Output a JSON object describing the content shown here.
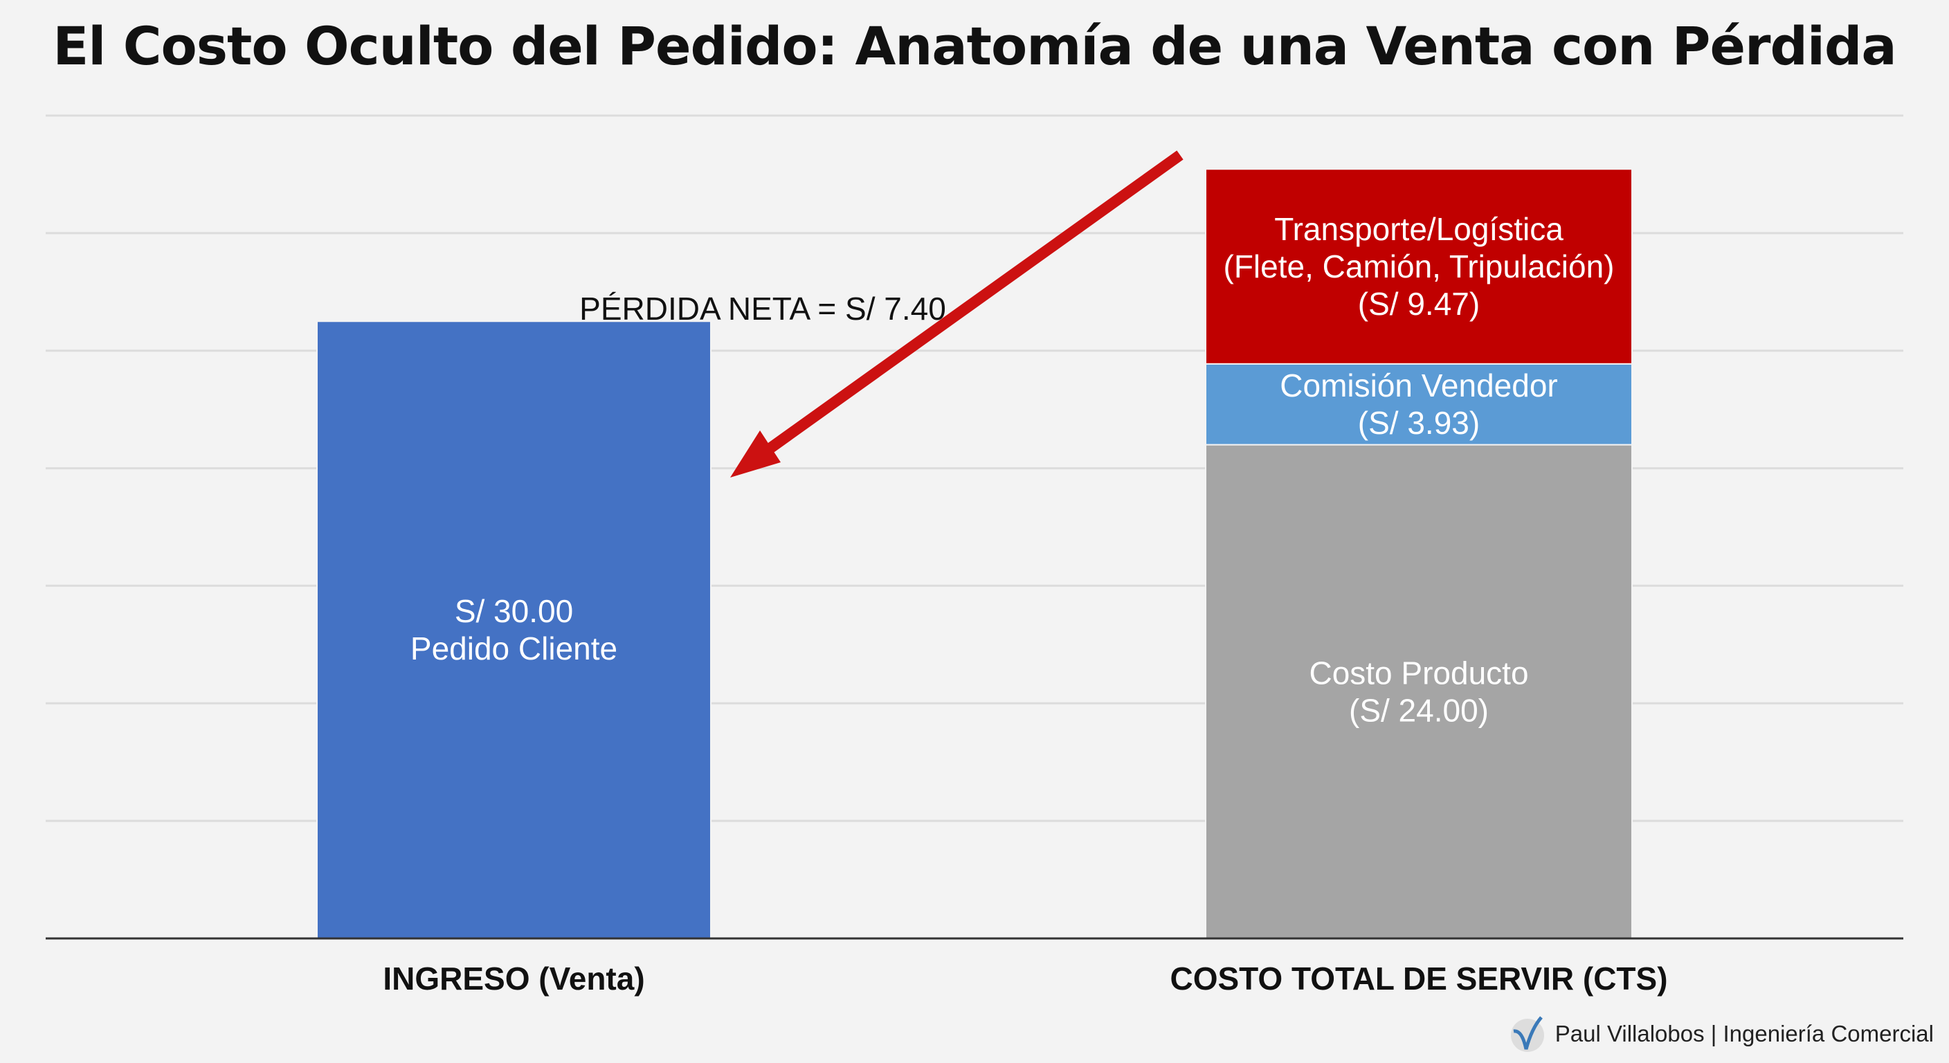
{
  "chart_data": {
    "type": "bar",
    "stacked": true,
    "title": "El Costo Oculto del Pedido: Anatomía de una Venta con Pérdida",
    "categories": [
      "INGRESO (Venta)",
      "COSTO TOTAL DE SERVIR (CTS)"
    ],
    "ylim": [
      0,
      40
    ],
    "grid": true,
    "bars": [
      {
        "category": "INGRESO (Venta)",
        "segments": [
          {
            "value": 30.0,
            "label": [
              "S/ 30.00",
              "Pedido Cliente"
            ],
            "color": "#4472c4"
          }
        ]
      },
      {
        "category": "COSTO TOTAL DE SERVIR (CTS)",
        "segments": [
          {
            "value": 24.0,
            "label": [
              "Costo Producto",
              "(S/ 24.00)"
            ],
            "color": "#a5a5a5"
          },
          {
            "value": 3.93,
            "label": [
              "Comisión Vendedor",
              "(S/ 3.93)"
            ],
            "color": "#5b9bd5"
          },
          {
            "value": 9.47,
            "label": [
              "Transporte/Logística",
              "(Flete, Camión, Tripulación)",
              "(S/ 9.47)"
            ],
            "color": "#c00000"
          }
        ]
      }
    ],
    "annotation": {
      "text": "PÉRDIDA NETA = S/ 7.40",
      "arrow_color": "#cc1111"
    }
  },
  "footer": {
    "text": "Paul Villalobos | Ingeniería Comercial",
    "logo": "V-check-logo"
  }
}
